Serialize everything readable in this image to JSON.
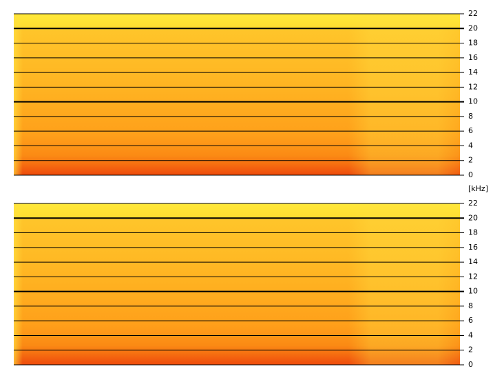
{
  "chart_data": [
    {
      "type": "spectrogram",
      "ylabel": "[kHz]",
      "ylim": [
        0,
        22
      ],
      "yticks": [
        0,
        2,
        4,
        6,
        8,
        10,
        12,
        14,
        16,
        18,
        20,
        22
      ],
      "grid": true,
      "major_grid": [
        10,
        20
      ]
    },
    {
      "type": "spectrogram",
      "ylim": [
        0,
        22
      ],
      "yticks": [
        0,
        2,
        4,
        6,
        8,
        10,
        12,
        14,
        16,
        18,
        20,
        22
      ],
      "grid": true,
      "major_grid": [
        10,
        20
      ]
    }
  ]
}
